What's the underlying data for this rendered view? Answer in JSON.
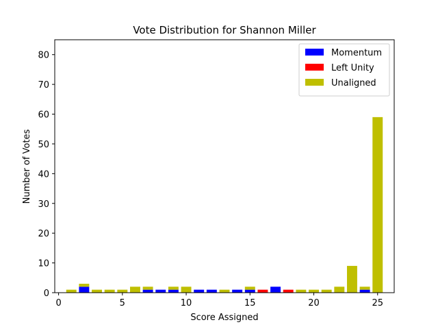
{
  "chart_data": {
    "type": "bar",
    "title": "Vote Distribution for Shannon Miller",
    "xlabel": "Score Assigned",
    "ylabel": "Number of Votes",
    "xlim": [
      -0.3,
      26.3
    ],
    "ylim": [
      0,
      85
    ],
    "xticks": [
      0,
      5,
      10,
      15,
      20,
      25
    ],
    "yticks": [
      0,
      10,
      20,
      30,
      40,
      50,
      60,
      70,
      80
    ],
    "stacked": true,
    "legend_position": "top-right",
    "x": [
      1,
      2,
      3,
      4,
      5,
      6,
      7,
      8,
      9,
      10,
      11,
      12,
      13,
      14,
      15,
      16,
      17,
      18,
      19,
      20,
      21,
      22,
      23,
      24,
      25
    ],
    "series": [
      {
        "name": "Momentum",
        "color": "#0000ff",
        "values": [
          0,
          2,
          0,
          0,
          0,
          0,
          1,
          1,
          1,
          0,
          1,
          1,
          0,
          1,
          1,
          0,
          2,
          0,
          0,
          0,
          0,
          0,
          0,
          1,
          0
        ]
      },
      {
        "name": "Left Unity",
        "color": "#ff0000",
        "values": [
          0,
          0,
          0,
          0,
          0,
          0,
          0,
          0,
          0,
          0,
          0,
          0,
          0,
          0,
          0,
          1,
          0,
          1,
          0,
          0,
          0,
          0,
          0,
          0,
          0
        ]
      },
      {
        "name": "Unaligned",
        "color": "#bfbf00",
        "values": [
          1,
          1,
          1,
          1,
          1,
          2,
          1,
          0,
          1,
          2,
          0,
          0,
          1,
          0,
          1,
          0,
          0,
          0,
          1,
          1,
          1,
          2,
          9,
          1,
          59
        ]
      }
    ]
  }
}
